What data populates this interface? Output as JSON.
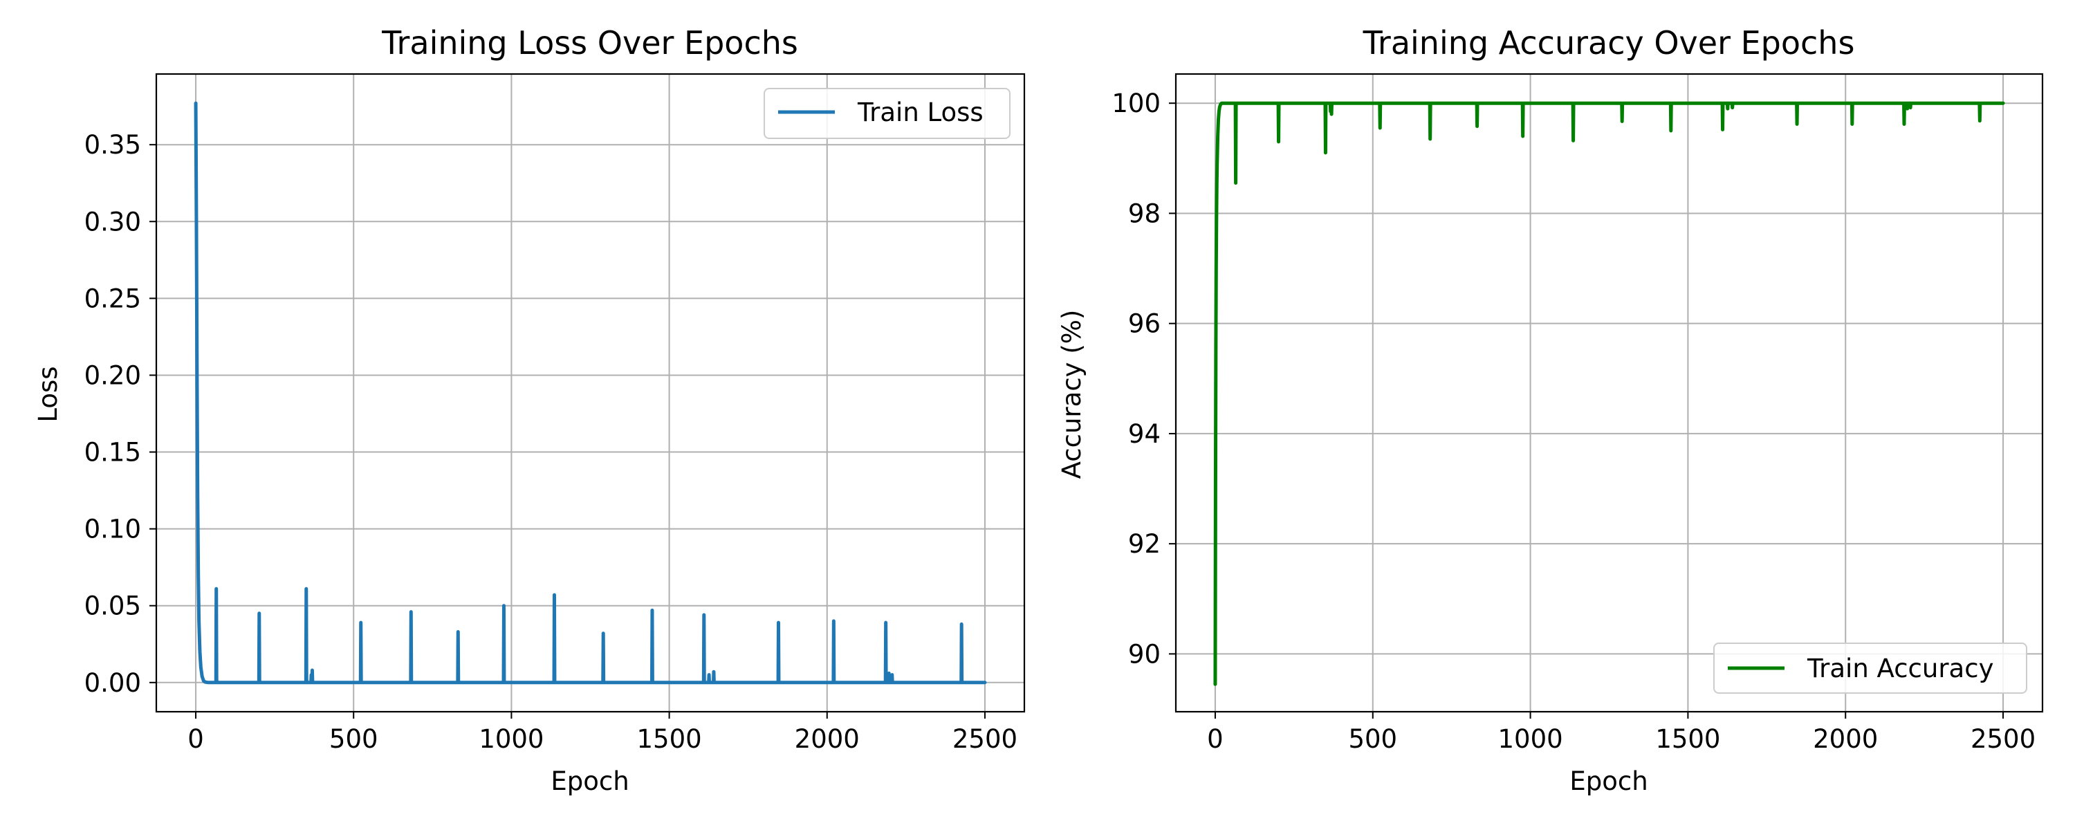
{
  "chart_data": [
    {
      "type": "line",
      "title": "Training Loss Over Epochs",
      "xlabel": "Epoch",
      "ylabel": "Loss",
      "xlim": [
        -125,
        2625
      ],
      "ylim": [
        -0.019,
        0.396
      ],
      "xticks": [
        0,
        500,
        1000,
        1500,
        2000,
        2500
      ],
      "xtick_labels": [
        "0",
        "500",
        "1000",
        "1500",
        "2000",
        "2500"
      ],
      "yticks": [
        0.0,
        0.05,
        0.1,
        0.15,
        0.2,
        0.25,
        0.3,
        0.35
      ],
      "ytick_labels": [
        "0.00",
        "0.05",
        "0.10",
        "0.15",
        "0.20",
        "0.25",
        "0.30",
        "0.35"
      ],
      "grid": true,
      "legend_position": "upper right",
      "series": [
        {
          "name": "Train Loss",
          "color": "#1f77b4",
          "x": [
            0,
            2,
            4,
            6,
            8,
            10,
            13,
            16,
            20,
            25,
            30,
            40,
            50,
            64,
            65,
            66,
            67,
            200,
            201,
            202,
            203,
            349,
            350,
            351,
            352,
            365,
            366,
            367,
            368,
            369,
            370,
            522,
            523,
            524,
            525,
            681,
            682,
            683,
            684,
            830,
            831,
            832,
            833,
            975,
            976,
            977,
            978,
            1135,
            1136,
            1137,
            1138,
            1290,
            1291,
            1292,
            1293,
            1445,
            1446,
            1447,
            1448,
            1609,
            1610,
            1611,
            1612,
            1625,
            1626,
            1627,
            1628,
            1640,
            1641,
            1642,
            1643,
            1845,
            1846,
            1847,
            1848,
            2020,
            2021,
            2022,
            2023,
            2185,
            2186,
            2187,
            2188,
            2195,
            2196,
            2197,
            2198,
            2205,
            2206,
            2207,
            2208,
            2425,
            2426,
            2427,
            2428,
            2500
          ],
          "y": [
            0.377,
            0.3,
            0.2,
            0.12,
            0.07,
            0.04,
            0.02,
            0.01,
            0.004,
            0.001,
            0.0003,
            0.0,
            0.0,
            0.0,
            0.061,
            0.002,
            0.0,
            0.0,
            0.045,
            0.001,
            0.0,
            0.0,
            0.061,
            0.002,
            0.0,
            0.0,
            0.005,
            0.0,
            0.0,
            0.008,
            0.0,
            0.0,
            0.039,
            0.001,
            0.0,
            0.0,
            0.046,
            0.001,
            0.0,
            0.0,
            0.033,
            0.001,
            0.0,
            0.0,
            0.05,
            0.001,
            0.0,
            0.0,
            0.057,
            0.001,
            0.0,
            0.0,
            0.032,
            0.001,
            0.0,
            0.0,
            0.047,
            0.001,
            0.0,
            0.0,
            0.044,
            0.001,
            0.0,
            0.0,
            0.005,
            0.0,
            0.0,
            0.0,
            0.007,
            0.0,
            0.0,
            0.0,
            0.039,
            0.001,
            0.0,
            0.0,
            0.04,
            0.001,
            0.0,
            0.0,
            0.039,
            0.001,
            0.0,
            0.0,
            0.006,
            0.0,
            0.0,
            0.0,
            0.005,
            0.0,
            0.0,
            0.0,
            0.038,
            0.001,
            0.0,
            0.0
          ]
        }
      ]
    },
    {
      "type": "line",
      "title": "Training Accuracy Over Epochs",
      "xlabel": "Epoch",
      "ylabel": "Accuracy (%)",
      "xlim": [
        -125,
        2625
      ],
      "ylim": [
        88.95,
        100.53
      ],
      "xticks": [
        0,
        500,
        1000,
        1500,
        2000,
        2500
      ],
      "xtick_labels": [
        "0",
        "500",
        "1000",
        "1500",
        "2000",
        "2500"
      ],
      "yticks": [
        90,
        92,
        94,
        96,
        98,
        100
      ],
      "ytick_labels": [
        "90",
        "92",
        "94",
        "96",
        "98",
        "100"
      ],
      "grid": true,
      "legend_position": "lower right",
      "series": [
        {
          "name": "Train Accuracy",
          "color": "#008000",
          "x": [
            0,
            1,
            2,
            3,
            4,
            5,
            6,
            8,
            10,
            12,
            14,
            17,
            20,
            25,
            30,
            64,
            65,
            66,
            67,
            200,
            201,
            202,
            203,
            349,
            350,
            351,
            352,
            365,
            366,
            367,
            368,
            369,
            370,
            522,
            523,
            524,
            525,
            681,
            682,
            683,
            684,
            830,
            831,
            832,
            833,
            975,
            976,
            977,
            978,
            1135,
            1136,
            1137,
            1138,
            1290,
            1291,
            1292,
            1293,
            1445,
            1446,
            1447,
            1448,
            1609,
            1610,
            1611,
            1612,
            1625,
            1626,
            1627,
            1628,
            1640,
            1641,
            1642,
            1643,
            1845,
            1846,
            1847,
            1848,
            2020,
            2021,
            2022,
            2023,
            2185,
            2186,
            2187,
            2188,
            2195,
            2196,
            2197,
            2198,
            2205,
            2206,
            2207,
            2208,
            2425,
            2426,
            2427,
            2428,
            2500
          ],
          "y": [
            89.45,
            93.0,
            95.5,
            97.0,
            97.9,
            98.5,
            98.9,
            99.4,
            99.7,
            99.85,
            99.93,
            99.98,
            100,
            100,
            100,
            100,
            98.55,
            99.95,
            100,
            100,
            99.3,
            99.98,
            100,
            100,
            99.1,
            99.97,
            100,
            100,
            99.85,
            100,
            100,
            99.8,
            100,
            100,
            99.55,
            99.99,
            100,
            100,
            99.35,
            99.98,
            100,
            100,
            99.58,
            99.99,
            100,
            100,
            99.4,
            99.98,
            100,
            100,
            99.32,
            99.98,
            100,
            100,
            99.67,
            99.99,
            100,
            100,
            99.5,
            99.99,
            100,
            100,
            99.52,
            99.99,
            100,
            100,
            99.9,
            100,
            100,
            100,
            99.92,
            100,
            100,
            100,
            99.62,
            99.99,
            100,
            100,
            99.62,
            99.99,
            100,
            100,
            99.62,
            99.99,
            100,
            100,
            99.9,
            100,
            100,
            100,
            99.92,
            100,
            100,
            100,
            99.68,
            99.99,
            100,
            100
          ]
        }
      ]
    }
  ]
}
